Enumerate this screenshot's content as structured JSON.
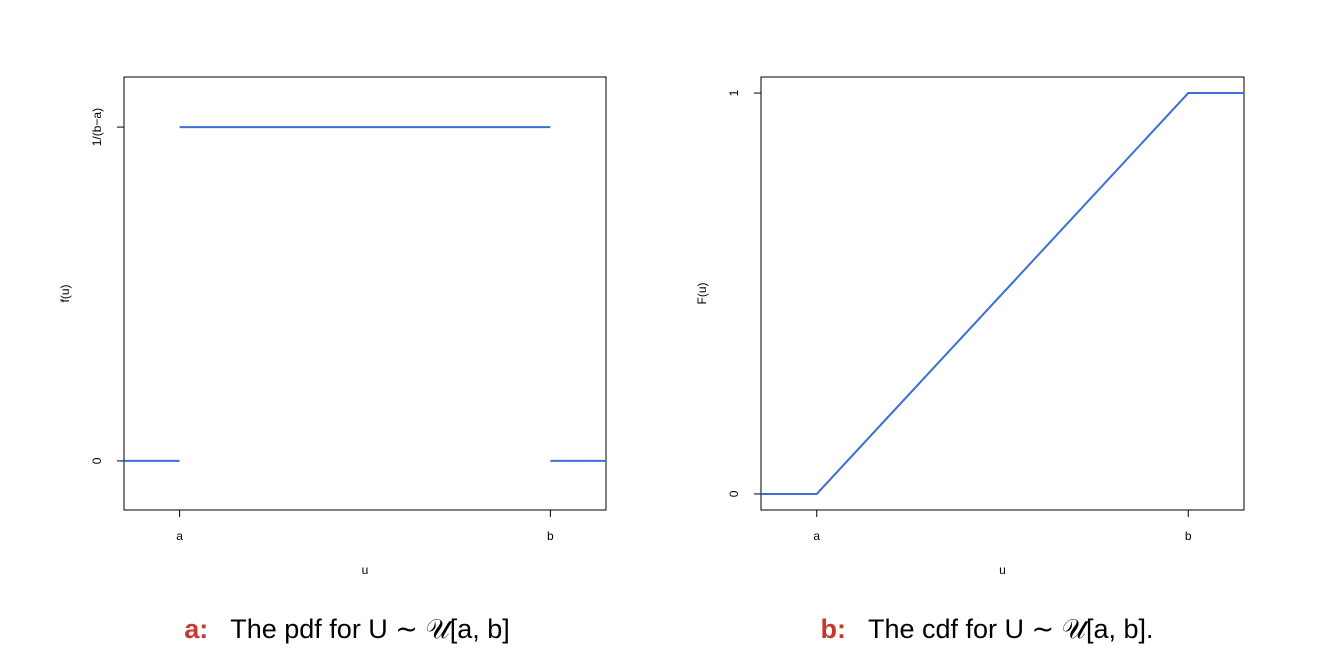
{
  "chart_data": [
    {
      "type": "line",
      "caption_label": "a:",
      "caption": "The pdf for U ∼ 𝒰[a, b]",
      "xlabel": "u",
      "ylabel": "f(u)",
      "x": [
        0.85,
        1,
        null,
        1,
        2,
        null,
        2,
        2.15
      ],
      "series": [
        {
          "color": "#3a6fd8",
          "values": [
            0,
            0,
            null,
            1,
            1,
            null,
            0,
            0
          ]
        }
      ],
      "xlim": [
        0.85,
        2.15
      ],
      "ylim": [
        -0.147,
        1.15
      ],
      "xticks": [
        {
          "value": 1,
          "label": "a"
        },
        {
          "value": 2,
          "label": "b"
        }
      ],
      "yticks": [
        0,
        {
          "value": 1,
          "label": "1/(b−a)"
        }
      ]
    },
    {
      "type": "line",
      "caption_label": "b:",
      "caption": "The cdf for U ∼ 𝒰[a, b].",
      "xlabel": "u",
      "ylabel": "F(u)",
      "x": [
        0.85,
        1,
        2,
        2.15
      ],
      "series": [
        {
          "color": "#3a6fd8",
          "values": [
            0,
            0,
            1,
            1
          ]
        }
      ],
      "xlim": [
        0.85,
        2.15
      ],
      "ylim": [
        -0.04,
        1.04
      ],
      "xticks": [
        {
          "value": 1,
          "label": "a"
        },
        {
          "value": 2,
          "label": "b"
        }
      ],
      "yticks": [
        0,
        1
      ]
    }
  ]
}
